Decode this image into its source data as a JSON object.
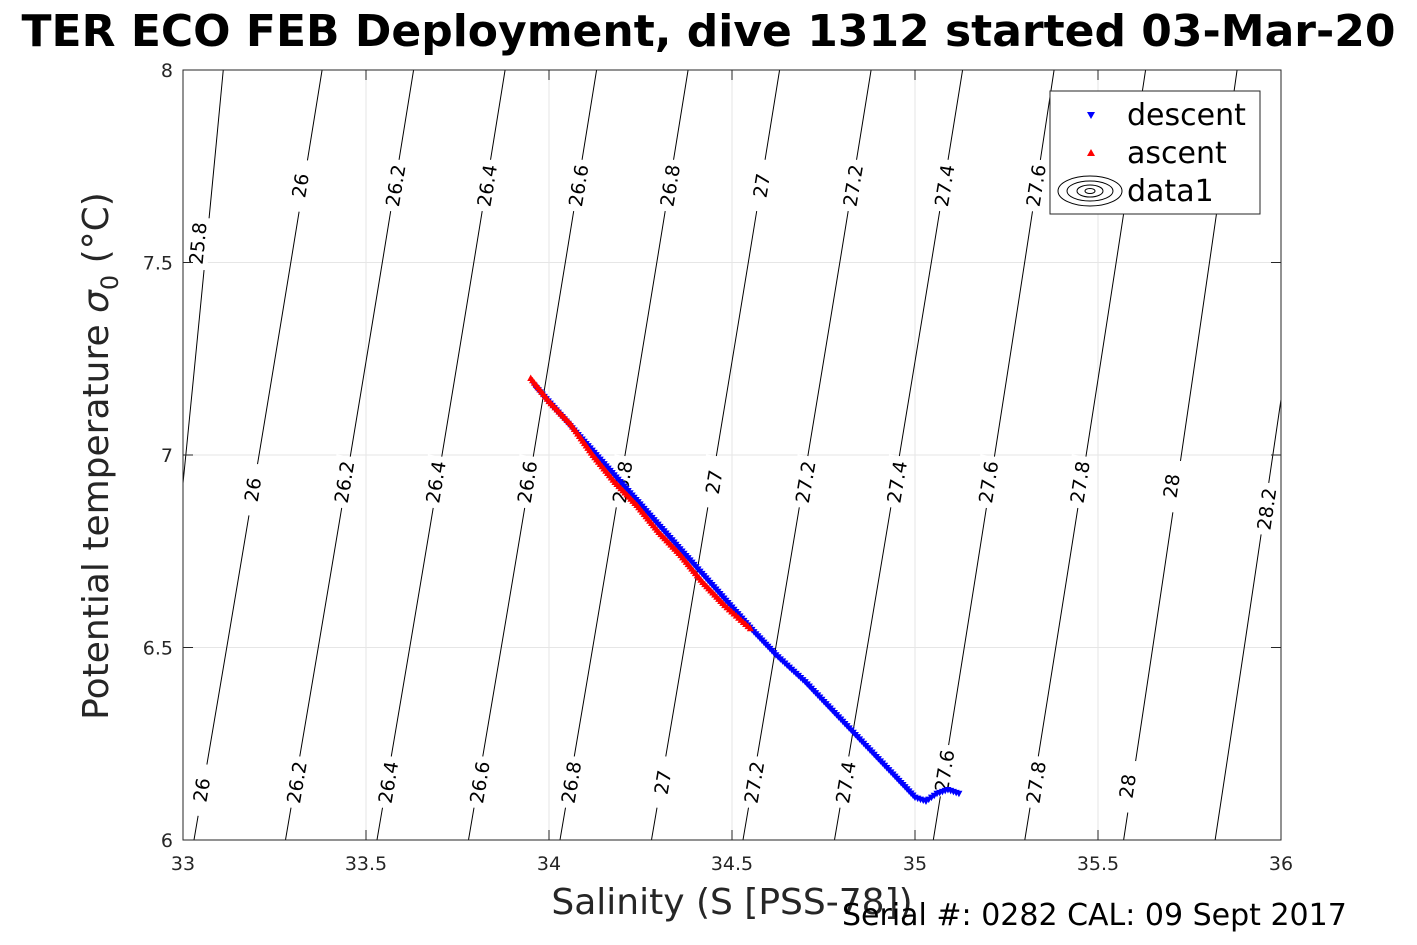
{
  "title": "TER ECO FEB Deployment, dive 1312 started 03-Mar-20",
  "footer": "Serial #: 0282  CAL: 09 Sept 2017",
  "chart_data": {
    "type": "scatter",
    "xlabel": "Salinity (S [PSS-78])",
    "ylabel_main": "Potential temperature ",
    "ylabel_symbol": "σ",
    "ylabel_sub": "0",
    "ylabel_unit": " (°C)",
    "xlim": [
      33,
      36
    ],
    "ylim": [
      6,
      8
    ],
    "xticks": [
      33,
      33.5,
      34,
      34.5,
      35,
      35.5,
      36
    ],
    "xtick_labels": [
      "33",
      "33.5",
      "34",
      "34.5",
      "35",
      "35.5",
      "36"
    ],
    "yticks": [
      6,
      6.5,
      7,
      7.5,
      8
    ],
    "ytick_labels": [
      "6",
      "6.5",
      "7",
      "7.5",
      "8"
    ],
    "grid": true,
    "legend_position": "top-right",
    "legend": [
      "descent",
      "ascent",
      "data1"
    ],
    "contours": [
      {
        "level": "25.8",
        "x_at_8": 33.11,
        "x_at_6": 32.9,
        "labels": [
          [
            33.04,
            7.55
          ]
        ]
      },
      {
        "level": "26",
        "x_at_8": 33.38,
        "x_at_6": 33.03,
        "labels": [
          [
            33.32,
            7.7
          ],
          [
            33.19,
            6.91
          ],
          [
            33.05,
            6.13
          ]
        ]
      },
      {
        "level": "26.2",
        "x_at_8": 33.63,
        "x_at_6": 33.28,
        "labels": [
          [
            33.58,
            7.7
          ],
          [
            33.44,
            6.93
          ],
          [
            33.31,
            6.15
          ]
        ]
      },
      {
        "level": "26.4",
        "x_at_8": 33.88,
        "x_at_6": 33.53,
        "labels": [
          [
            33.83,
            7.7
          ],
          [
            33.69,
            6.93
          ],
          [
            33.56,
            6.15
          ]
        ]
      },
      {
        "level": "26.6",
        "x_at_8": 34.13,
        "x_at_6": 33.78,
        "labels": [
          [
            34.08,
            7.7
          ],
          [
            33.94,
            6.93
          ],
          [
            33.81,
            6.15
          ]
        ]
      },
      {
        "level": "26.8",
        "x_at_8": 34.38,
        "x_at_6": 34.03,
        "labels": [
          [
            34.33,
            7.7
          ],
          [
            34.2,
            6.93
          ],
          [
            34.06,
            6.15
          ]
        ]
      },
      {
        "level": "27",
        "x_at_8": 34.63,
        "x_at_6": 34.28,
        "labels": [
          [
            34.58,
            7.7
          ],
          [
            34.45,
            6.93
          ],
          [
            34.31,
            6.15
          ]
        ]
      },
      {
        "level": "27.2",
        "x_at_8": 34.88,
        "x_at_6": 34.53,
        "labels": [
          [
            34.83,
            7.7
          ],
          [
            34.7,
            6.93
          ],
          [
            34.56,
            6.15
          ]
        ]
      },
      {
        "level": "27.4",
        "x_at_8": 35.13,
        "x_at_6": 34.78,
        "labels": [
          [
            35.08,
            7.7
          ],
          [
            34.95,
            6.93
          ],
          [
            34.81,
            6.15
          ]
        ]
      },
      {
        "level": "27.6",
        "x_at_8": 35.38,
        "x_at_6": 35.05,
        "labels": [
          [
            35.33,
            7.7
          ],
          [
            35.2,
            6.93
          ],
          [
            35.08,
            6.18
          ]
        ]
      },
      {
        "level": "27.8",
        "x_at_8": 35.63,
        "x_at_6": 35.3,
        "labels": [
          [
            35.45,
            6.93
          ],
          [
            35.33,
            6.15
          ]
        ]
      },
      {
        "level": "28",
        "x_at_8": 35.88,
        "x_at_6": 35.57,
        "labels": [
          [
            35.7,
            6.92
          ],
          [
            35.58,
            6.14
          ]
        ]
      },
      {
        "level": "28.2",
        "x_at_8": 36.13,
        "x_at_6": 35.82,
        "labels": [
          [
            35.96,
            6.86
          ]
        ]
      }
    ],
    "series": [
      {
        "name": "descent",
        "color": "#0000ff",
        "marker": "triangle-down",
        "points": [
          [
            33.96,
            7.18
          ],
          [
            34.56,
            6.54
          ],
          [
            34.62,
            6.48
          ],
          [
            34.7,
            6.41
          ],
          [
            34.78,
            6.33
          ],
          [
            34.86,
            6.25
          ],
          [
            34.94,
            6.17
          ],
          [
            35.0,
            6.11
          ],
          [
            35.03,
            6.1
          ],
          [
            35.06,
            6.12
          ],
          [
            35.09,
            6.13
          ],
          [
            35.12,
            6.12
          ]
        ]
      },
      {
        "name": "ascent",
        "color": "#ff0000",
        "marker": "triangle-up",
        "points": [
          [
            33.95,
            7.2
          ],
          [
            34.0,
            7.14
          ],
          [
            34.06,
            7.08
          ],
          [
            34.12,
            7.0
          ],
          [
            34.18,
            6.93
          ],
          [
            34.24,
            6.87
          ],
          [
            34.3,
            6.8
          ],
          [
            34.36,
            6.74
          ],
          [
            34.42,
            6.67
          ],
          [
            34.48,
            6.61
          ],
          [
            34.55,
            6.55
          ]
        ]
      }
    ]
  }
}
